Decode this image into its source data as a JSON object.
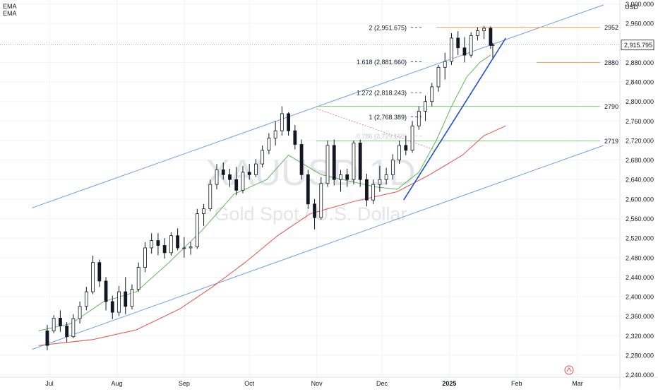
{
  "legend": {
    "ema1": "EMA",
    "ema2": "EMA"
  },
  "currency": "USD",
  "watermark": {
    "symbol": "XAUUSD 1D",
    "name": "Gold Spot / U.S. Dollar"
  },
  "chart_data": {
    "type": "candlestick",
    "ylim": [
      2235,
      3008
    ],
    "y_ticks": [
      "2,240.000",
      "2,280.000",
      "2,320.000",
      "2,360.000",
      "2,400.000",
      "2,440.000",
      "2,480.000",
      "2,520.000",
      "2,560.000",
      "2,600.000",
      "2,640.000",
      "2,680.000",
      "2,720.000",
      "2,760.000",
      "2,800.000",
      "2,840.000",
      "2,880.000",
      "2,920.000",
      "2,960.000",
      "3,000.000"
    ],
    "x_ticks": [
      {
        "label": "Jul",
        "day": 0
      },
      {
        "label": "Aug",
        "day": 31
      },
      {
        "label": "Sep",
        "day": 62
      },
      {
        "label": "Oct",
        "day": 92
      },
      {
        "label": "Nov",
        "day": 123
      },
      {
        "label": "Dec",
        "day": 153
      },
      {
        "label": "2025",
        "day": 184
      },
      {
        "label": "Feb",
        "day": 215
      },
      {
        "label": "Mar",
        "day": 243
      }
    ],
    "grid": true,
    "current_price": {
      "value": 2915.795,
      "label": "2,915.795"
    },
    "closes": [
      2337,
      2328,
      2318,
      2322,
      2335,
      2345,
      2352,
      2360,
      2365,
      2372,
      2368,
      2362,
      2355,
      2350,
      2345,
      2342,
      2348,
      2356,
      2362,
      2370,
      2378,
      2388,
      2400,
      2410,
      2415,
      2418,
      2412,
      2402,
      2395,
      2388,
      2384,
      2380,
      2385,
      2395,
      2400,
      2408,
      2416,
      2424,
      2430,
      2436,
      2440,
      2446,
      2452,
      2458,
      2464,
      2468,
      2472,
      2476,
      2480,
      2484,
      2490,
      2496,
      2502,
      2508,
      2514,
      2520,
      2526,
      2532,
      2538,
      2544,
      2550,
      2556,
      2562,
      2568,
      2576,
      2584,
      2592,
      2600,
      2606,
      2612,
      2618,
      2622,
      2628,
      2634,
      2640,
      2648,
      2656,
      2662,
      2665,
      2668,
      2663,
      2655,
      2648,
      2643,
      2645,
      2650,
      2656,
      2662,
      2668,
      2675,
      2682,
      2690,
      2698,
      2706,
      2714,
      2722,
      2730,
      2738,
      2748,
      2756,
      2762,
      2758,
      2744,
      2722,
      2700,
      2675,
      2650,
      2628,
      2612,
      2604,
      2598,
      2600,
      2605,
      2612,
      2620,
      2628,
      2636,
      2644,
      2652,
      2660,
      2668,
      2676,
      2684,
      2690,
      2693,
      2690,
      2683,
      2670,
      2660,
      2650,
      2642,
      2635,
      2630,
      2625,
      2620,
      2615,
      2610,
      2606,
      2602,
      2598,
      2594,
      2592,
      2593,
      2596,
      2600,
      2606,
      2612,
      2620,
      2628,
      2638,
      2650,
      2662,
      2676,
      2690,
      2706,
      2722,
      2740,
      2756,
      2770,
      2784,
      2798,
      2812,
      2826,
      2838,
      2850,
      2860,
      2870,
      2880,
      2890,
      2900,
      2908,
      2916,
      2922,
      2928,
      2933,
      2938,
      2940,
      2938,
      2934,
      2925,
      2916
    ],
    "candles": [
      {
        "d": -1,
        "o": 2330,
        "h": 2342,
        "l": 2290,
        "c": 2300
      },
      {
        "d": 2,
        "o": 2330,
        "h": 2362,
        "l": 2325,
        "c": 2356
      },
      {
        "d": 5,
        "o": 2356,
        "h": 2372,
        "l": 2328,
        "c": 2340
      },
      {
        "d": 8,
        "o": 2340,
        "h": 2348,
        "l": 2306,
        "c": 2318
      },
      {
        "d": 11,
        "o": 2318,
        "h": 2364,
        "l": 2315,
        "c": 2355
      },
      {
        "d": 14,
        "o": 2355,
        "h": 2390,
        "l": 2345,
        "c": 2380
      },
      {
        "d": 17,
        "o": 2380,
        "h": 2420,
        "l": 2372,
        "c": 2410
      },
      {
        "d": 20,
        "o": 2410,
        "h": 2484,
        "l": 2405,
        "c": 2470
      },
      {
        "d": 23,
        "o": 2470,
        "h": 2476,
        "l": 2420,
        "c": 2432
      },
      {
        "d": 26,
        "o": 2432,
        "h": 2440,
        "l": 2372,
        "c": 2390
      },
      {
        "d": 29,
        "o": 2390,
        "h": 2402,
        "l": 2354,
        "c": 2368
      },
      {
        "d": 32,
        "o": 2368,
        "h": 2422,
        "l": 2360,
        "c": 2410
      },
      {
        "d": 35,
        "o": 2410,
        "h": 2440,
        "l": 2364,
        "c": 2380
      },
      {
        "d": 38,
        "o": 2380,
        "h": 2425,
        "l": 2374,
        "c": 2415
      },
      {
        "d": 41,
        "o": 2415,
        "h": 2470,
        "l": 2410,
        "c": 2460
      },
      {
        "d": 44,
        "o": 2460,
        "h": 2512,
        "l": 2450,
        "c": 2500
      },
      {
        "d": 47,
        "o": 2500,
        "h": 2530,
        "l": 2488,
        "c": 2515
      },
      {
        "d": 50,
        "o": 2515,
        "h": 2530,
        "l": 2485,
        "c": 2505
      },
      {
        "d": 53,
        "o": 2505,
        "h": 2520,
        "l": 2478,
        "c": 2490
      },
      {
        "d": 56,
        "o": 2490,
        "h": 2532,
        "l": 2484,
        "c": 2525
      },
      {
        "d": 59,
        "o": 2525,
        "h": 2540,
        "l": 2495,
        "c": 2500
      },
      {
        "d": 62,
        "o": 2500,
        "h": 2522,
        "l": 2480,
        "c": 2500
      },
      {
        "d": 65,
        "o": 2500,
        "h": 2512,
        "l": 2486,
        "c": 2502
      },
      {
        "d": 68,
        "o": 2502,
        "h": 2580,
        "l": 2498,
        "c": 2570
      },
      {
        "d": 71,
        "o": 2570,
        "h": 2590,
        "l": 2545,
        "c": 2580
      },
      {
        "d": 74,
        "o": 2580,
        "h": 2640,
        "l": 2575,
        "c": 2630
      },
      {
        "d": 77,
        "o": 2630,
        "h": 2672,
        "l": 2620,
        "c": 2660
      },
      {
        "d": 80,
        "o": 2660,
        "h": 2675,
        "l": 2640,
        "c": 2650
      },
      {
        "d": 83,
        "o": 2650,
        "h": 2662,
        "l": 2625,
        "c": 2640
      },
      {
        "d": 86,
        "o": 2640,
        "h": 2666,
        "l": 2608,
        "c": 2618
      },
      {
        "d": 89,
        "o": 2618,
        "h": 2668,
        "l": 2612,
        "c": 2655
      },
      {
        "d": 92,
        "o": 2655,
        "h": 2672,
        "l": 2640,
        "c": 2650
      },
      {
        "d": 95,
        "o": 2650,
        "h": 2682,
        "l": 2645,
        "c": 2672
      },
      {
        "d": 98,
        "o": 2672,
        "h": 2710,
        "l": 2665,
        "c": 2700
      },
      {
        "d": 101,
        "o": 2700,
        "h": 2735,
        "l": 2692,
        "c": 2725
      },
      {
        "d": 104,
        "o": 2725,
        "h": 2760,
        "l": 2710,
        "c": 2740
      },
      {
        "d": 107,
        "o": 2740,
        "h": 2790,
        "l": 2730,
        "c": 2775
      },
      {
        "d": 110,
        "o": 2775,
        "h": 2778,
        "l": 2730,
        "c": 2740
      },
      {
        "d": 113,
        "o": 2740,
        "h": 2752,
        "l": 2702,
        "c": 2712
      },
      {
        "d": 116,
        "o": 2712,
        "h": 2722,
        "l": 2640,
        "c": 2650
      },
      {
        "d": 119,
        "o": 2650,
        "h": 2660,
        "l": 2580,
        "c": 2590
      },
      {
        "d": 122,
        "o": 2590,
        "h": 2600,
        "l": 2538,
        "c": 2562
      },
      {
        "d": 125,
        "o": 2562,
        "h": 2645,
        "l": 2558,
        "c": 2632
      },
      {
        "d": 128,
        "o": 2632,
        "h": 2720,
        "l": 2625,
        "c": 2710
      },
      {
        "d": 131,
        "o": 2710,
        "h": 2722,
        "l": 2628,
        "c": 2640
      },
      {
        "d": 134,
        "o": 2640,
        "h": 2660,
        "l": 2615,
        "c": 2650
      },
      {
        "d": 137,
        "o": 2650,
        "h": 2662,
        "l": 2625,
        "c": 2640
      },
      {
        "d": 140,
        "o": 2640,
        "h": 2720,
        "l": 2630,
        "c": 2715
      },
      {
        "d": 143,
        "o": 2715,
        "h": 2722,
        "l": 2625,
        "c": 2640
      },
      {
        "d": 146,
        "o": 2640,
        "h": 2652,
        "l": 2585,
        "c": 2598
      },
      {
        "d": 149,
        "o": 2598,
        "h": 2640,
        "l": 2590,
        "c": 2630
      },
      {
        "d": 152,
        "o": 2630,
        "h": 2668,
        "l": 2615,
        "c": 2640
      },
      {
        "d": 155,
        "o": 2640,
        "h": 2664,
        "l": 2630,
        "c": 2650
      },
      {
        "d": 158,
        "o": 2650,
        "h": 2692,
        "l": 2640,
        "c": 2680
      },
      {
        "d": 161,
        "o": 2680,
        "h": 2720,
        "l": 2672,
        "c": 2710
      },
      {
        "d": 164,
        "o": 2710,
        "h": 2730,
        "l": 2690,
        "c": 2700
      },
      {
        "d": 167,
        "o": 2700,
        "h": 2760,
        "l": 2695,
        "c": 2750
      },
      {
        "d": 170,
        "o": 2750,
        "h": 2790,
        "l": 2742,
        "c": 2780
      },
      {
        "d": 173,
        "o": 2780,
        "h": 2812,
        "l": 2760,
        "c": 2800
      },
      {
        "d": 176,
        "o": 2800,
        "h": 2838,
        "l": 2790,
        "c": 2830
      },
      {
        "d": 179,
        "o": 2830,
        "h": 2875,
        "l": 2820,
        "c": 2870
      },
      {
        "d": 182,
        "o": 2870,
        "h": 2900,
        "l": 2845,
        "c": 2882
      },
      {
        "d": 185,
        "o": 2882,
        "h": 2940,
        "l": 2875,
        "c": 2930
      },
      {
        "d": 188,
        "o": 2930,
        "h": 2944,
        "l": 2895,
        "c": 2910
      },
      {
        "d": 191,
        "o": 2910,
        "h": 2932,
        "l": 2880,
        "c": 2895
      },
      {
        "d": 194,
        "o": 2895,
        "h": 2942,
        "l": 2890,
        "c": 2935
      },
      {
        "d": 197,
        "o": 2935,
        "h": 2952,
        "l": 2925,
        "c": 2945
      },
      {
        "d": 200,
        "o": 2945,
        "h": 2955,
        "l": 2928,
        "c": 2950
      },
      {
        "d": 203,
        "o": 2950,
        "h": 2954,
        "l": 2908,
        "c": 2915
      },
      {
        "d": 204,
        "o": 2915,
        "h": 2920,
        "l": 2888,
        "c": 2916
      }
    ],
    "ema_short": [
      [
        -5,
        2330
      ],
      [
        10,
        2345
      ],
      [
        25,
        2390
      ],
      [
        40,
        2410
      ],
      [
        55,
        2470
      ],
      [
        70,
        2535
      ],
      [
        85,
        2610
      ],
      [
        100,
        2640
      ],
      [
        110,
        2690
      ],
      [
        125,
        2650
      ],
      [
        140,
        2635
      ],
      [
        150,
        2625
      ],
      [
        160,
        2620
      ],
      [
        170,
        2655
      ],
      [
        178,
        2720
      ],
      [
        185,
        2790
      ],
      [
        192,
        2850
      ],
      [
        198,
        2880
      ],
      [
        203,
        2895
      ]
    ],
    "ema_long": [
      [
        -5,
        2300
      ],
      [
        20,
        2312
      ],
      [
        40,
        2332
      ],
      [
        60,
        2375
      ],
      [
        75,
        2420
      ],
      [
        90,
        2470
      ],
      [
        105,
        2525
      ],
      [
        120,
        2570
      ],
      [
        140,
        2595
      ],
      [
        160,
        2615
      ],
      [
        175,
        2650
      ],
      [
        190,
        2690
      ],
      [
        200,
        2730
      ],
      [
        210,
        2750
      ]
    ],
    "channel": {
      "upper": [
        [
          -8,
          2582
        ],
        [
          255,
          2998
        ]
      ],
      "lower": [
        [
          -8,
          2292
        ],
        [
          255,
          2710
        ]
      ]
    },
    "trendline": [
      [
        163,
        2598
      ],
      [
        210,
        2930
      ]
    ],
    "fib": [
      {
        "label": "2 (2,951.675)",
        "value": 2951.675
      },
      {
        "label": "1.618 (2,881.660)",
        "value": 2881.66
      },
      {
        "label": "1.272 (2,818.243)",
        "value": 2818.243
      },
      {
        "label": "1 (2,768.389)",
        "value": 2768.389
      },
      {
        "label": "0.786 (2,729.160)",
        "value": 2729.16
      }
    ],
    "levels": [
      {
        "label": "2952",
        "value": 2952,
        "color": "#f5a15a"
      },
      {
        "label": "2880",
        "value": 2880,
        "color": "#f5a15a"
      },
      {
        "label": "2790",
        "value": 2790,
        "color": "#7fd07a"
      },
      {
        "label": "2719",
        "value": 2719,
        "color": "#7fd07a"
      }
    ],
    "colors": {
      "up": "#131722",
      "down": "#131722",
      "ema_short": "#5fb85a",
      "ema_long": "#e8504a",
      "channel": "#6f9ee8",
      "trend": "#2050c8",
      "dotted": "#e07070"
    }
  }
}
